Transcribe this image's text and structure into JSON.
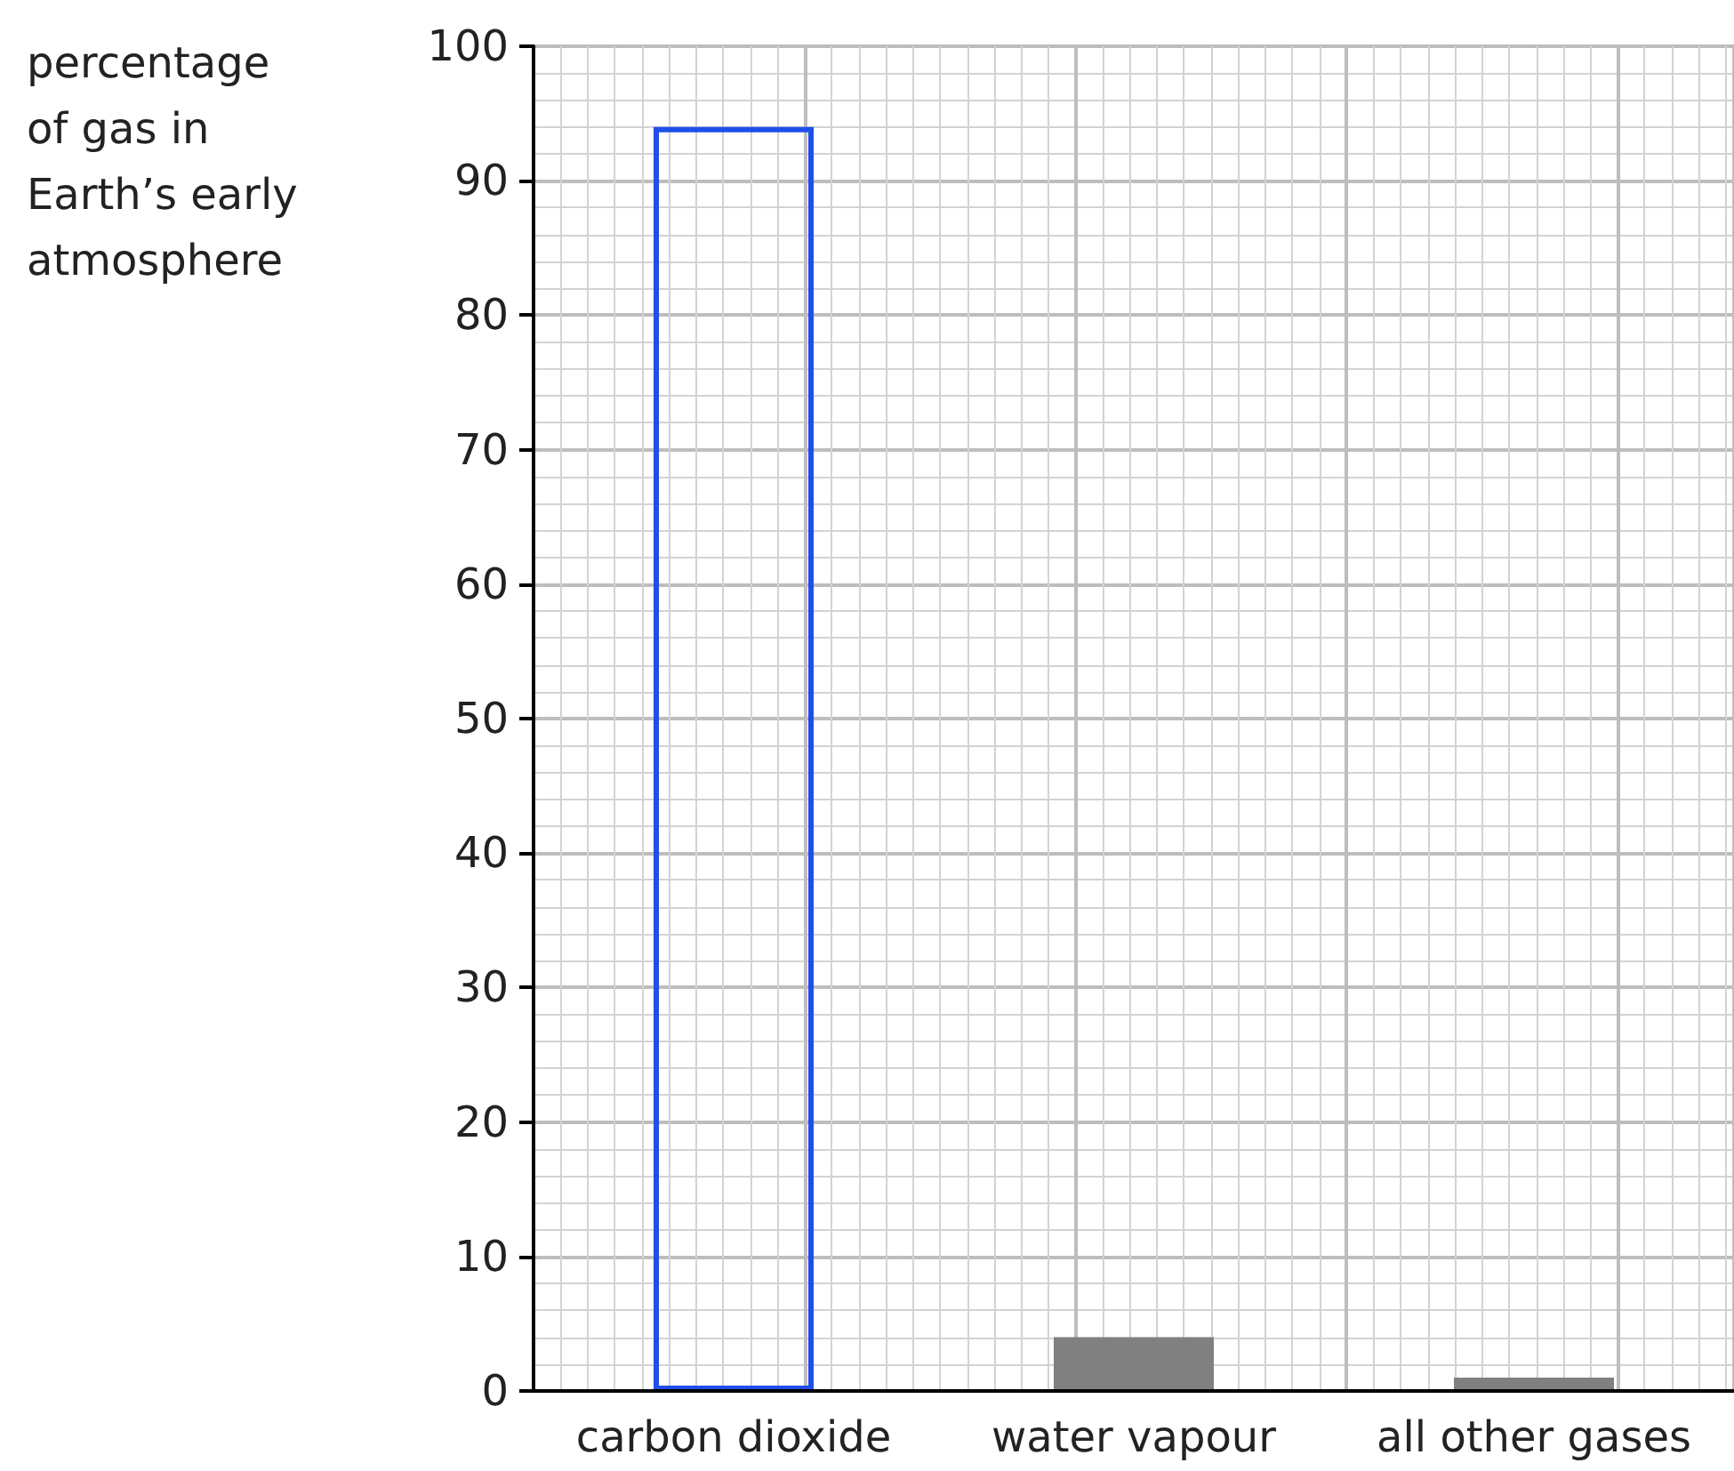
{
  "chart_data": {
    "type": "bar",
    "ylabel": "percentage\nof gas in\nEarth’s early\natmosphere",
    "categories": [
      "carbon dioxide",
      "water vapour",
      "all other gases"
    ],
    "values": [
      94,
      4,
      1
    ],
    "colors": [
      "#1f4fe8",
      "#808080",
      "#808080"
    ],
    "ylim": [
      0,
      100
    ],
    "yticks": [
      0,
      10,
      20,
      30,
      40,
      50,
      60,
      70,
      80,
      90,
      100
    ],
    "grid": true
  }
}
